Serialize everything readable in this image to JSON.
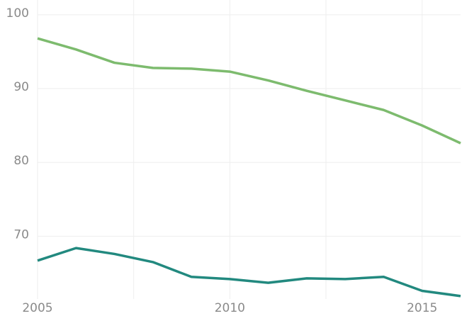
{
  "chart_data": {
    "type": "line",
    "x": [
      2005,
      2006,
      2007,
      2008,
      2009,
      2010,
      2011,
      2012,
      2013,
      2014,
      2015,
      2016
    ],
    "series": [
      {
        "color": "#7dbb6e",
        "values": [
          96.8,
          95.3,
          93.5,
          92.8,
          92.7,
          92.3,
          91.1,
          89.7,
          88.4,
          87.1,
          85.0,
          82.6
        ]
      },
      {
        "color": "#22897f",
        "values": [
          66.7,
          68.4,
          67.6,
          66.5,
          64.5,
          64.2,
          63.7,
          64.3,
          64.2,
          64.5,
          62.6,
          61.9
        ]
      }
    ],
    "xlim": [
      2005,
      2016
    ],
    "xticks": [
      2005,
      2010,
      2015
    ],
    "xminor": [
      2007.5,
      2012.5
    ],
    "ylim": [
      61.5,
      102
    ],
    "yticks": [
      70,
      80,
      90,
      100
    ],
    "grid": true
  }
}
